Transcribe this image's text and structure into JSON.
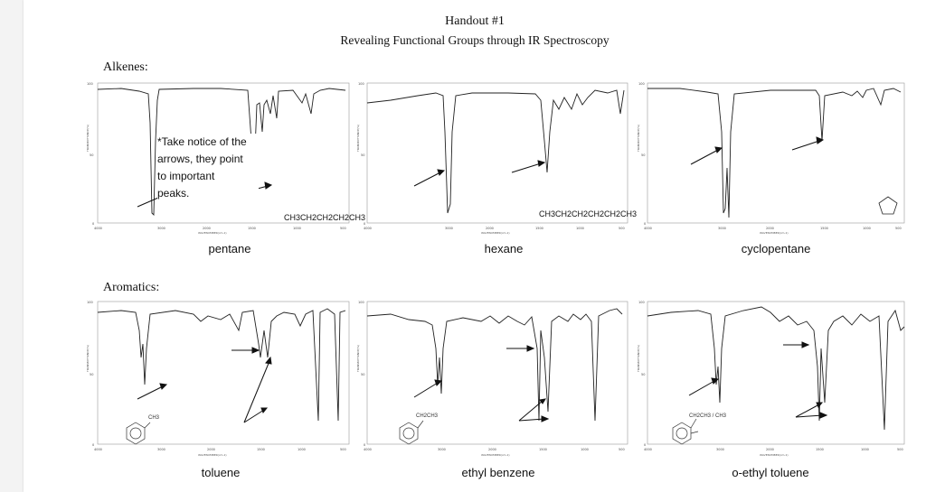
{
  "document": {
    "title": "Handout #1",
    "subtitle": "Revealing Functional Groups through IR Spectroscopy",
    "note": "*Take notice of the\narrows, they point\nto important\npeaks.",
    "sections": [
      {
        "name": "Alkenes:"
      },
      {
        "name": "Aromatics:"
      }
    ]
  },
  "spectra": [
    {
      "caption": "pentane",
      "formula": "CH3CH2CH2CH2CH3"
    },
    {
      "caption": "hexane",
      "formula": "CH3CH2CH2CH2CH2CH3"
    },
    {
      "caption": "cyclopentane",
      "formula": ""
    },
    {
      "caption": "toluene",
      "formula": "CH3"
    },
    {
      "caption": "ethyl benzene",
      "formula": "CH2CH3"
    },
    {
      "caption": "o-ethyl toluene",
      "formula": "CH2CH3 / CH3"
    }
  ],
  "axis": {
    "x_ticks": [
      "4000",
      "3000",
      "2000",
      "1500",
      "1000",
      "500"
    ],
    "y_ticks": [
      "100",
      "50",
      "0"
    ],
    "xlabel": "WAVENUMBER(cm-1)",
    "ylabel": "TRANSMITTANCE(%)"
  },
  "icons": [
    "arrow-icon",
    "benzene-ring-icon",
    "cyclopentane-ring-icon"
  ]
}
